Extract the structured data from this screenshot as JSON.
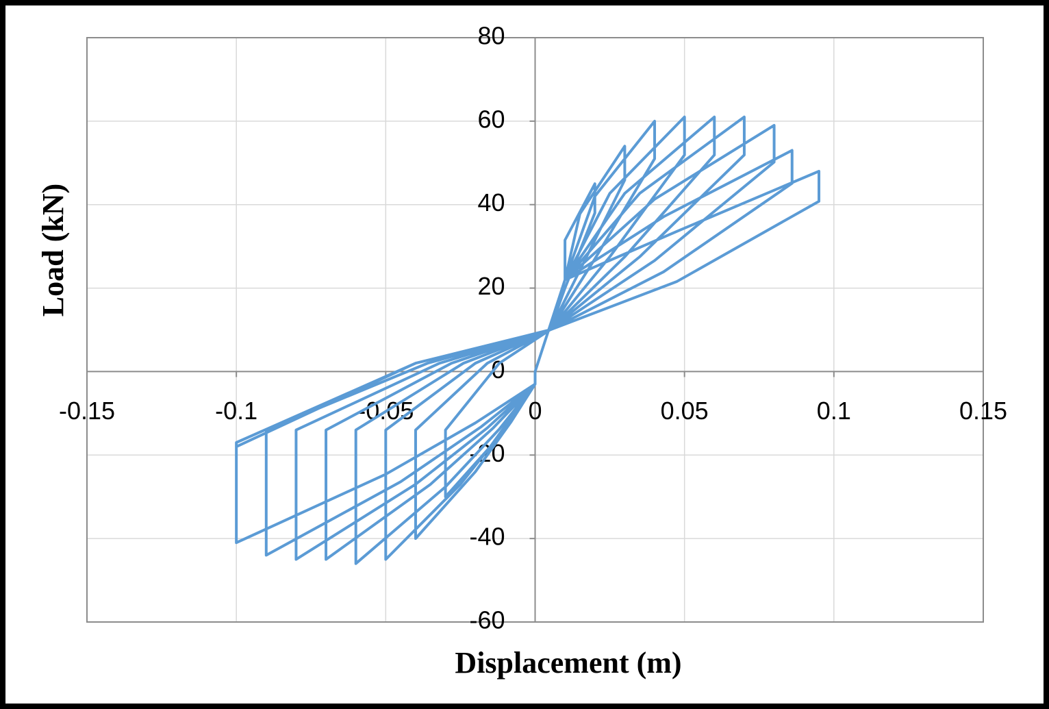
{
  "chart_data": {
    "type": "line",
    "x_label": "Displacement (m)",
    "y_label": "Load (kN)",
    "color": "#5b9bd5",
    "grid": true,
    "xlim": [
      -0.15,
      0.15
    ],
    "xticks": [
      -0.15,
      -0.1,
      -0.05,
      0,
      0.05,
      0.1,
      0.15
    ],
    "ylim": [
      -60,
      80
    ],
    "yticks": [
      -60,
      -40,
      -20,
      0,
      20,
      40,
      60,
      80
    ],
    "x": [
      0,
      0.01,
      0.01,
      0.02,
      0.02,
      0.01,
      0.005,
      -0.012,
      -0.03,
      -0.03,
      -0.015,
      -0.006,
      0,
      0,
      0.01,
      0.015,
      0.03,
      0.03,
      0.015,
      0.005,
      -0.016,
      -0.04,
      -0.04,
      -0.02,
      -0.008,
      0,
      0,
      0.01,
      0.02,
      0.04,
      0.04,
      0.02,
      0.005,
      -0.02,
      -0.05,
      -0.05,
      -0.025,
      -0.01,
      0,
      0,
      0.01,
      0.025,
      0.05,
      0.05,
      0.025,
      0.005,
      -0.024,
      -0.06,
      -0.06,
      -0.03,
      -0.012,
      0,
      0,
      0.01,
      0.03,
      0.06,
      0.06,
      0.03,
      0.005,
      -0.028,
      -0.07,
      -0.07,
      -0.035,
      -0.014,
      0,
      0,
      0.01,
      0.035,
      0.07,
      0.07,
      0.035,
      0.005,
      -0.032,
      -0.08,
      -0.08,
      -0.04,
      -0.016,
      0,
      0,
      0.01,
      0.04,
      0.08,
      0.08,
      0.04,
      0.005,
      -0.036,
      -0.09,
      -0.09,
      -0.045,
      -0.018,
      0,
      0,
      0.01,
      0.043,
      0.086,
      0.086,
      0.043,
      0.005,
      -0.04,
      -0.1,
      -0.1,
      -0.05,
      -0.02,
      0,
      0,
      0.01,
      0.0475,
      0.095,
      0.095,
      0.0475,
      0.005,
      -0.04,
      -0.1
    ],
    "values": [
      0,
      22,
      31.5,
      45,
      38,
      20,
      10,
      2,
      -14,
      -30,
      -18,
      -9,
      -3,
      0,
      22,
      37.8,
      54,
      45.9,
      24.3,
      10,
      2,
      -14,
      -40,
      -24,
      -12,
      -3,
      0,
      22,
      42,
      60,
      51,
      27,
      10,
      2,
      -14,
      -45,
      -27,
      -13.5,
      -3,
      0,
      22,
      42.7,
      61,
      51.9,
      27.5,
      10,
      2,
      -14,
      -46,
      -27.6,
      -13.8,
      -3,
      0,
      22,
      42.7,
      61,
      51.9,
      27.5,
      10,
      2,
      -14,
      -45,
      -27,
      -13.5,
      -3,
      0,
      22,
      42.7,
      61,
      51.9,
      27.5,
      10,
      2,
      -14,
      -45,
      -27,
      -13.5,
      -3,
      0,
      22,
      41.3,
      59,
      50.2,
      26.6,
      10,
      2,
      -14,
      -44,
      -26.4,
      -13.2,
      -3,
      0,
      22,
      37.1,
      53,
      45.1,
      23.9,
      10,
      2,
      -17,
      -41,
      -24.6,
      -12.3,
      -3,
      0,
      22,
      33.6,
      48,
      40.8,
      21.6,
      10,
      2,
      -18
    ]
  }
}
